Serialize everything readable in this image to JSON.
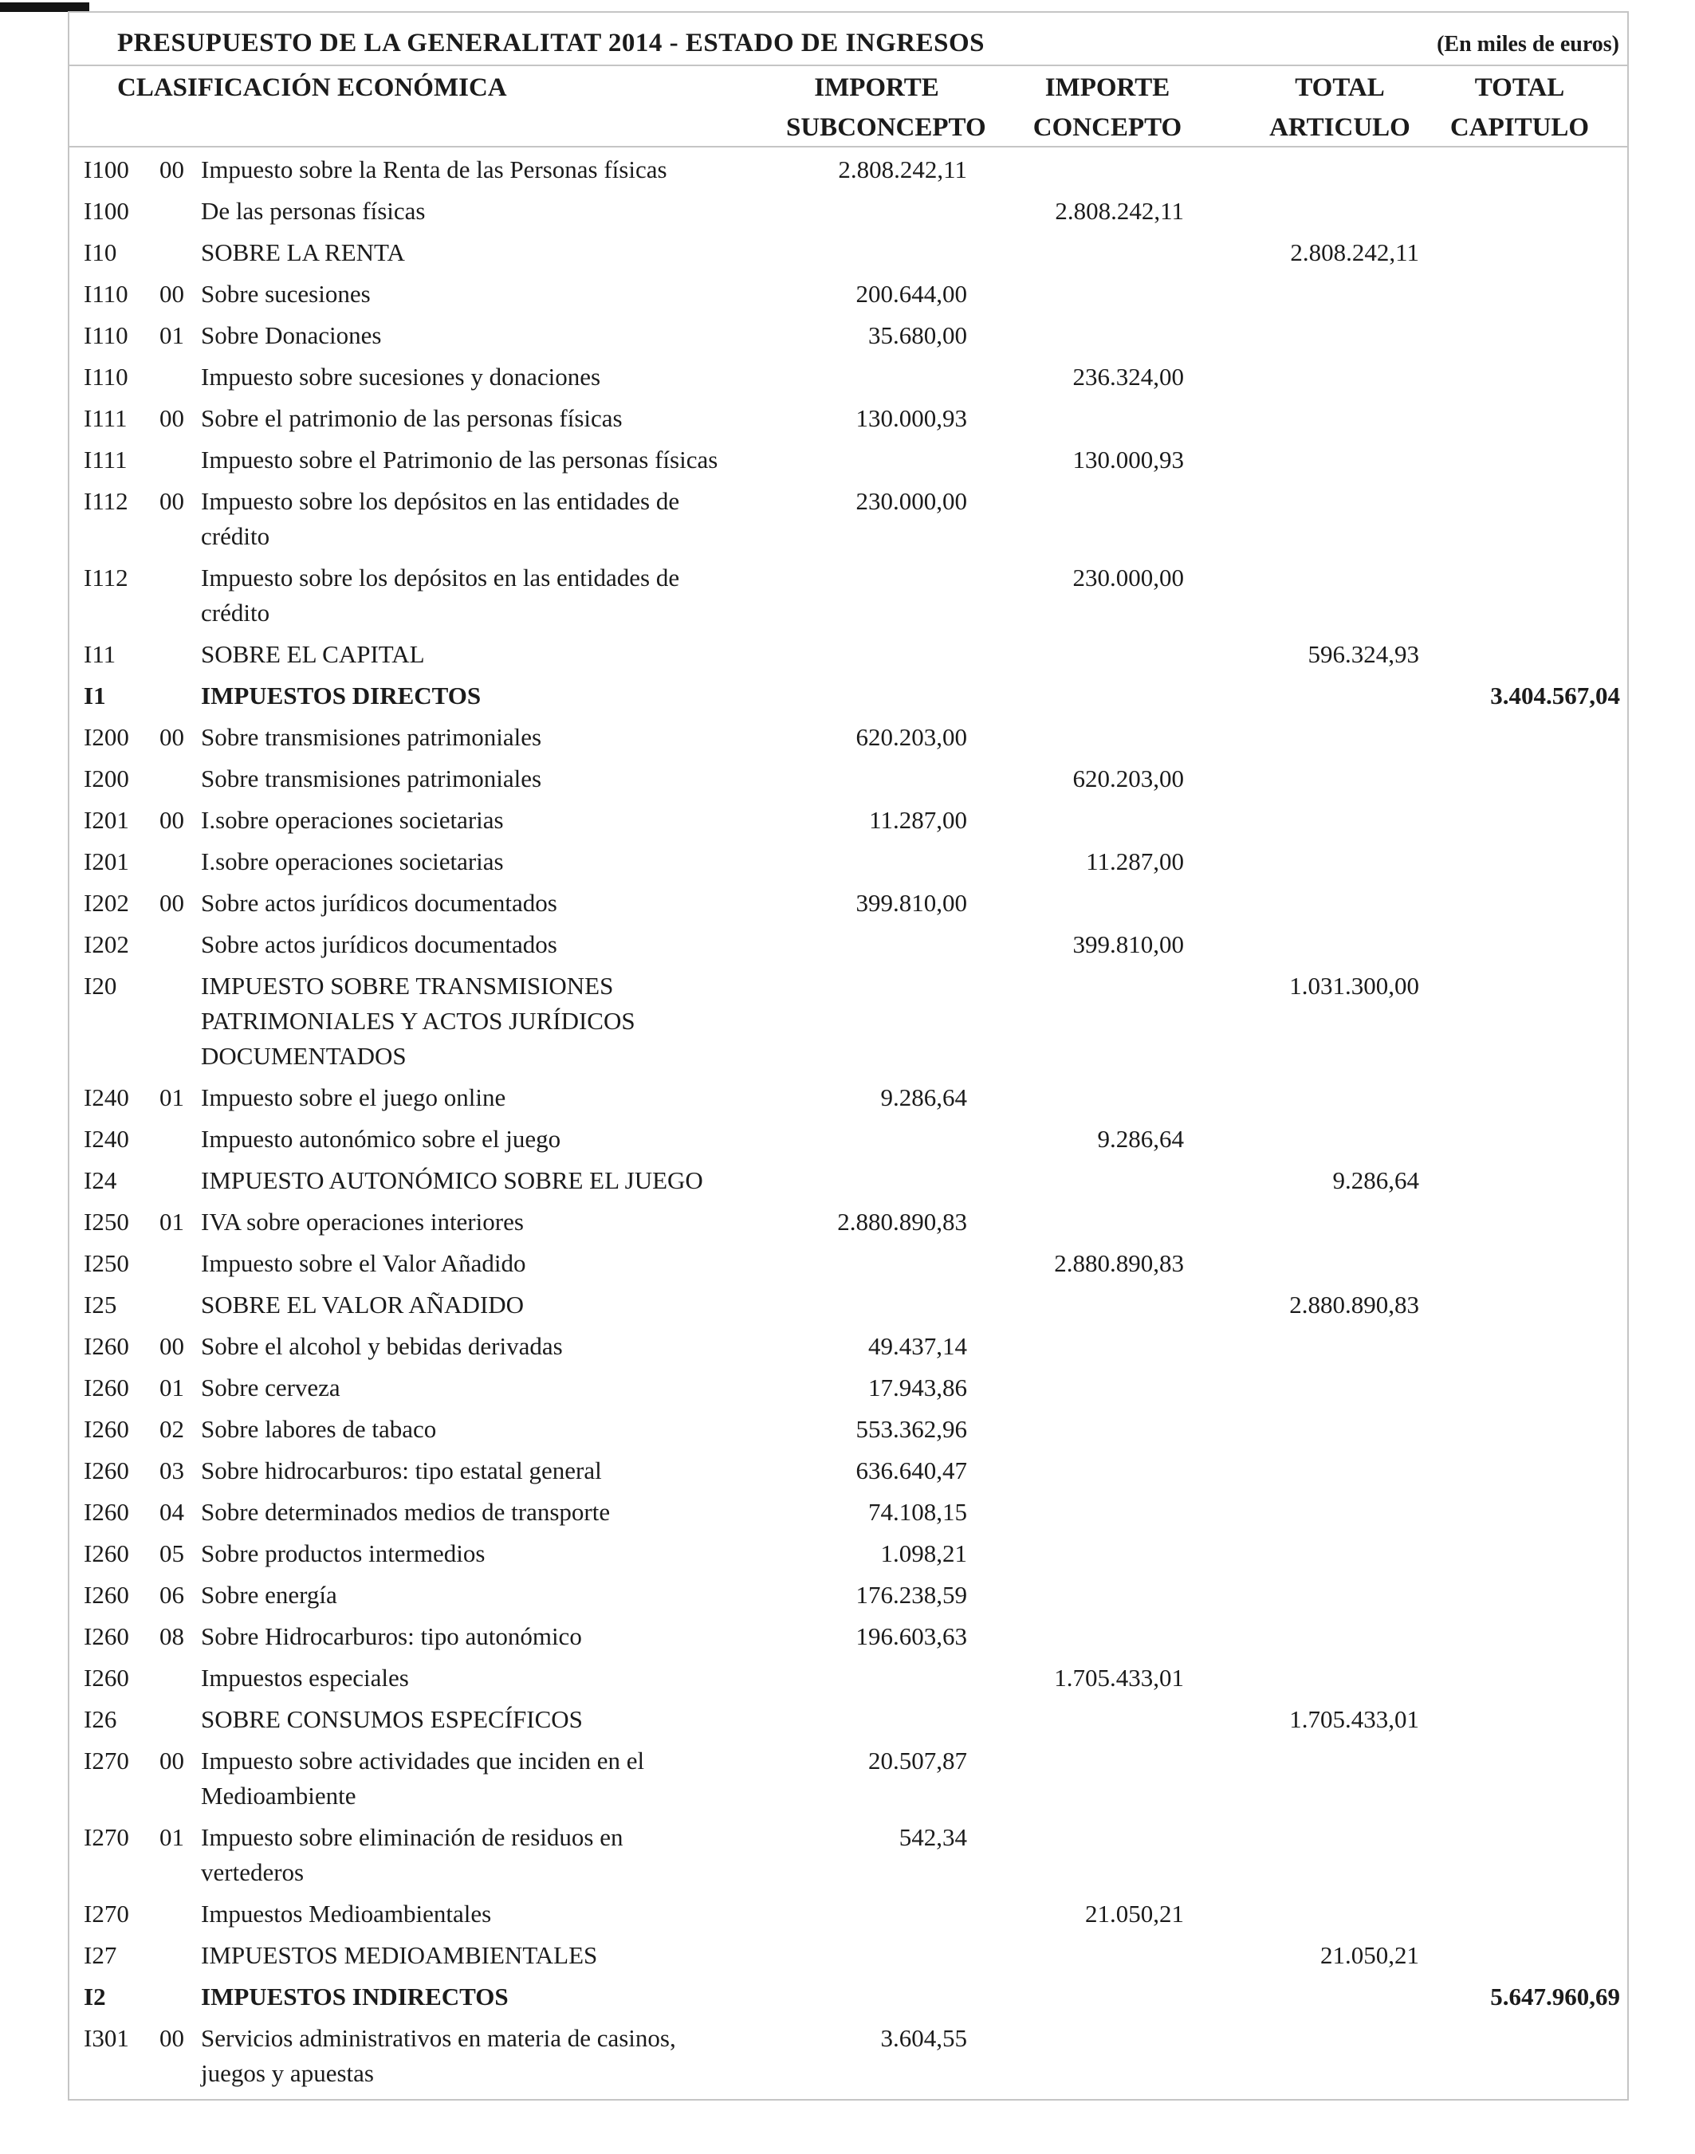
{
  "document": {
    "title": "PRESUPUESTO DE LA GENERALITAT 2014 - ESTADO DE INGRESOS",
    "unit_note": "(En miles de euros)"
  },
  "table": {
    "classification_header": "CLASIFICACIÓN ECONÓMICA",
    "column_headers": [
      {
        "line1": "IMPORTE",
        "line2": "SUBCONCEPTO"
      },
      {
        "line1": "IMPORTE",
        "line2": "CONCEPTO"
      },
      {
        "line1": "TOTAL",
        "line2": "ARTICULO"
      },
      {
        "line1": "TOTAL",
        "line2": "CAPITULO"
      }
    ],
    "rows": [
      {
        "code": "I100",
        "sub": "00",
        "label": "Impuesto sobre la Renta de las Personas físicas",
        "subconcepto": "2.808.242,11",
        "concepto": "",
        "articulo": "",
        "capitulo": "",
        "bold": false
      },
      {
        "code": "I100",
        "sub": "",
        "label": "De las personas físicas",
        "subconcepto": "",
        "concepto": "2.808.242,11",
        "articulo": "",
        "capitulo": "",
        "bold": false
      },
      {
        "code": "I10",
        "sub": "",
        "label": "SOBRE LA RENTA",
        "subconcepto": "",
        "concepto": "",
        "articulo": "2.808.242,11",
        "capitulo": "",
        "bold": false
      },
      {
        "code": "I110",
        "sub": "00",
        "label": "Sobre sucesiones",
        "subconcepto": "200.644,00",
        "concepto": "",
        "articulo": "",
        "capitulo": "",
        "bold": false
      },
      {
        "code": "I110",
        "sub": "01",
        "label": "Sobre Donaciones",
        "subconcepto": "35.680,00",
        "concepto": "",
        "articulo": "",
        "capitulo": "",
        "bold": false
      },
      {
        "code": "I110",
        "sub": "",
        "label": "Impuesto sobre sucesiones y donaciones",
        "subconcepto": "",
        "concepto": "236.324,00",
        "articulo": "",
        "capitulo": "",
        "bold": false
      },
      {
        "code": "I111",
        "sub": "00",
        "label": "Sobre el patrimonio de las personas físicas",
        "subconcepto": "130.000,93",
        "concepto": "",
        "articulo": "",
        "capitulo": "",
        "bold": false
      },
      {
        "code": "I111",
        "sub": "",
        "label": "Impuesto sobre el Patrimonio de las personas físicas",
        "subconcepto": "",
        "concepto": "130.000,93",
        "articulo": "",
        "capitulo": "",
        "bold": false
      },
      {
        "code": "I112",
        "sub": "00",
        "label": "Impuesto sobre los depósitos en las entidades de crédito",
        "subconcepto": "230.000,00",
        "concepto": "",
        "articulo": "",
        "capitulo": "",
        "bold": false
      },
      {
        "code": "I112",
        "sub": "",
        "label": "Impuesto sobre los depósitos en las entidades de crédito",
        "subconcepto": "",
        "concepto": "230.000,00",
        "articulo": "",
        "capitulo": "",
        "bold": false
      },
      {
        "code": "I11",
        "sub": "",
        "label": "SOBRE EL CAPITAL",
        "subconcepto": "",
        "concepto": "",
        "articulo": "596.324,93",
        "capitulo": "",
        "bold": false
      },
      {
        "code": "I1",
        "sub": "",
        "label": "IMPUESTOS DIRECTOS",
        "subconcepto": "",
        "concepto": "",
        "articulo": "",
        "capitulo": "3.404.567,04",
        "bold": true
      },
      {
        "code": "I200",
        "sub": "00",
        "label": "Sobre transmisiones patrimoniales",
        "subconcepto": "620.203,00",
        "concepto": "",
        "articulo": "",
        "capitulo": "",
        "bold": false
      },
      {
        "code": "I200",
        "sub": "",
        "label": "Sobre transmisiones patrimoniales",
        "subconcepto": "",
        "concepto": "620.203,00",
        "articulo": "",
        "capitulo": "",
        "bold": false
      },
      {
        "code": "I201",
        "sub": "00",
        "label": "I.sobre operaciones societarias",
        "subconcepto": "11.287,00",
        "concepto": "",
        "articulo": "",
        "capitulo": "",
        "bold": false
      },
      {
        "code": "I201",
        "sub": "",
        "label": "I.sobre operaciones societarias",
        "subconcepto": "",
        "concepto": "11.287,00",
        "articulo": "",
        "capitulo": "",
        "bold": false
      },
      {
        "code": "I202",
        "sub": "00",
        "label": "Sobre actos jurídicos documentados",
        "subconcepto": "399.810,00",
        "concepto": "",
        "articulo": "",
        "capitulo": "",
        "bold": false
      },
      {
        "code": "I202",
        "sub": "",
        "label": "Sobre actos jurídicos documentados",
        "subconcepto": "",
        "concepto": "399.810,00",
        "articulo": "",
        "capitulo": "",
        "bold": false
      },
      {
        "code": "I20",
        "sub": "",
        "label": "IMPUESTO SOBRE TRANSMISIONES PATRIMONIALES Y ACTOS JURÍDICOS DOCUMENTADOS",
        "subconcepto": "",
        "concepto": "",
        "articulo": "1.031.300,00",
        "capitulo": "",
        "bold": false
      },
      {
        "code": "I240",
        "sub": "01",
        "label": "Impuesto sobre el juego online",
        "subconcepto": "9.286,64",
        "concepto": "",
        "articulo": "",
        "capitulo": "",
        "bold": false
      },
      {
        "code": "I240",
        "sub": "",
        "label": "Impuesto autonómico sobre el juego",
        "subconcepto": "",
        "concepto": "9.286,64",
        "articulo": "",
        "capitulo": "",
        "bold": false
      },
      {
        "code": "I24",
        "sub": "",
        "label": "IMPUESTO AUTONÓMICO SOBRE EL JUEGO",
        "subconcepto": "",
        "concepto": "",
        "articulo": "9.286,64",
        "capitulo": "",
        "bold": false
      },
      {
        "code": "I250",
        "sub": "01",
        "label": "IVA sobre operaciones interiores",
        "subconcepto": "2.880.890,83",
        "concepto": "",
        "articulo": "",
        "capitulo": "",
        "bold": false
      },
      {
        "code": "I250",
        "sub": "",
        "label": "Impuesto sobre el Valor Añadido",
        "subconcepto": "",
        "concepto": "2.880.890,83",
        "articulo": "",
        "capitulo": "",
        "bold": false
      },
      {
        "code": "I25",
        "sub": "",
        "label": "SOBRE EL VALOR AÑADIDO",
        "subconcepto": "",
        "concepto": "",
        "articulo": "2.880.890,83",
        "capitulo": "",
        "bold": false
      },
      {
        "code": "I260",
        "sub": "00",
        "label": "Sobre el alcohol y bebidas derivadas",
        "subconcepto": "49.437,14",
        "concepto": "",
        "articulo": "",
        "capitulo": "",
        "bold": false
      },
      {
        "code": "I260",
        "sub": "01",
        "label": "Sobre cerveza",
        "subconcepto": "17.943,86",
        "concepto": "",
        "articulo": "",
        "capitulo": "",
        "bold": false
      },
      {
        "code": "I260",
        "sub": "02",
        "label": "Sobre labores de tabaco",
        "subconcepto": "553.362,96",
        "concepto": "",
        "articulo": "",
        "capitulo": "",
        "bold": false
      },
      {
        "code": "I260",
        "sub": "03",
        "label": "Sobre hidrocarburos: tipo estatal general",
        "subconcepto": "636.640,47",
        "concepto": "",
        "articulo": "",
        "capitulo": "",
        "bold": false
      },
      {
        "code": "I260",
        "sub": "04",
        "label": "Sobre determinados medios de transporte",
        "subconcepto": "74.108,15",
        "concepto": "",
        "articulo": "",
        "capitulo": "",
        "bold": false
      },
      {
        "code": "I260",
        "sub": "05",
        "label": "Sobre productos intermedios",
        "subconcepto": "1.098,21",
        "concepto": "",
        "articulo": "",
        "capitulo": "",
        "bold": false
      },
      {
        "code": "I260",
        "sub": "06",
        "label": "Sobre energía",
        "subconcepto": "176.238,59",
        "concepto": "",
        "articulo": "",
        "capitulo": "",
        "bold": false
      },
      {
        "code": "I260",
        "sub": "08",
        "label": "Sobre Hidrocarburos: tipo autonómico",
        "subconcepto": "196.603,63",
        "concepto": "",
        "articulo": "",
        "capitulo": "",
        "bold": false
      },
      {
        "code": "I260",
        "sub": "",
        "label": "Impuestos especiales",
        "subconcepto": "",
        "concepto": "1.705.433,01",
        "articulo": "",
        "capitulo": "",
        "bold": false
      },
      {
        "code": "I26",
        "sub": "",
        "label": "SOBRE CONSUMOS ESPECÍFICOS",
        "subconcepto": "",
        "concepto": "",
        "articulo": "1.705.433,01",
        "capitulo": "",
        "bold": false
      },
      {
        "code": "I270",
        "sub": "00",
        "label": "Impuesto sobre actividades que inciden en el Medioambiente",
        "subconcepto": "20.507,87",
        "concepto": "",
        "articulo": "",
        "capitulo": "",
        "bold": false
      },
      {
        "code": "I270",
        "sub": "01",
        "label": "Impuesto sobre eliminación de residuos en vertederos",
        "subconcepto": "542,34",
        "concepto": "",
        "articulo": "",
        "capitulo": "",
        "bold": false
      },
      {
        "code": "I270",
        "sub": "",
        "label": "Impuestos Medioambientales",
        "subconcepto": "",
        "concepto": "21.050,21",
        "articulo": "",
        "capitulo": "",
        "bold": false
      },
      {
        "code": "I27",
        "sub": "",
        "label": "IMPUESTOS MEDIOAMBIENTALES",
        "subconcepto": "",
        "concepto": "",
        "articulo": "21.050,21",
        "capitulo": "",
        "bold": false
      },
      {
        "code": "I2",
        "sub": "",
        "label": "IMPUESTOS INDIRECTOS",
        "subconcepto": "",
        "concepto": "",
        "articulo": "",
        "capitulo": "5.647.960,69",
        "bold": true
      },
      {
        "code": "I301",
        "sub": "00",
        "label": "Servicios administrativos en materia de casinos, juegos y apuestas",
        "subconcepto": "3.604,55",
        "concepto": "",
        "articulo": "",
        "capitulo": "",
        "bold": false
      }
    ]
  }
}
